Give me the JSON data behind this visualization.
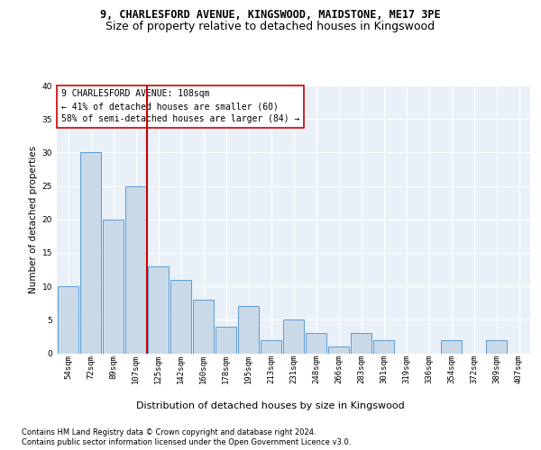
{
  "title1": "9, CHARLESFORD AVENUE, KINGSWOOD, MAIDSTONE, ME17 3PE",
  "title2": "Size of property relative to detached houses in Kingswood",
  "xlabel": "Distribution of detached houses by size in Kingswood",
  "ylabel": "Number of detached properties",
  "categories": [
    "54sqm",
    "72sqm",
    "89sqm",
    "107sqm",
    "125sqm",
    "142sqm",
    "160sqm",
    "178sqm",
    "195sqm",
    "213sqm",
    "231sqm",
    "248sqm",
    "266sqm",
    "283sqm",
    "301sqm",
    "319sqm",
    "336sqm",
    "354sqm",
    "372sqm",
    "389sqm",
    "407sqm"
  ],
  "values": [
    10,
    30,
    20,
    25,
    13,
    11,
    8,
    4,
    7,
    2,
    5,
    3,
    1,
    3,
    2,
    0,
    0,
    2,
    0,
    2,
    0
  ],
  "bar_color": "#c9d9e8",
  "bar_edge_color": "#5b9bd5",
  "annotation_line1": "9 CHARLESFORD AVENUE: 108sqm",
  "annotation_line2": "← 41% of detached houses are smaller (60)",
  "annotation_line3": "58% of semi-detached houses are larger (84) →",
  "vline_x_index": 3,
  "vline_color": "#cc0000",
  "annotation_box_edge_color": "#cc0000",
  "footer1": "Contains HM Land Registry data © Crown copyright and database right 2024.",
  "footer2": "Contains public sector information licensed under the Open Government Licence v3.0.",
  "ylim": [
    0,
    40
  ],
  "yticks": [
    0,
    5,
    10,
    15,
    20,
    25,
    30,
    35,
    40
  ],
  "background_color": "#eaf0f8",
  "title1_fontsize": 8.5,
  "title2_fontsize": 9,
  "xlabel_fontsize": 8,
  "ylabel_fontsize": 7.5,
  "tick_fontsize": 6.5,
  "footer_fontsize": 6,
  "annotation_fontsize": 7
}
